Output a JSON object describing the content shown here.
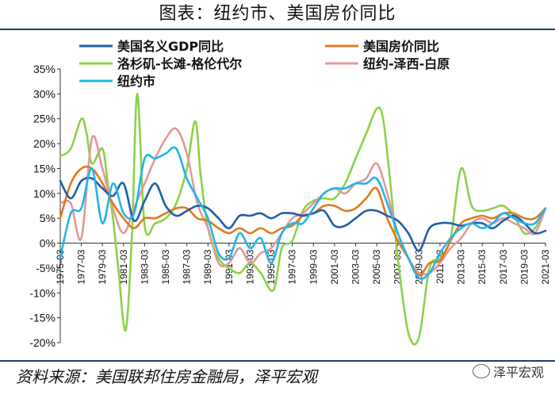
{
  "title": "图表：纽约市、美国房价同比",
  "source": "资料来源：美国联邦住房金融局，泽平宏观",
  "watermark": "泽平宏观",
  "chart_data": {
    "type": "line",
    "title": "图表：纽约市、美国房价同比",
    "xlabel": "",
    "ylabel": "",
    "ylim": [
      -20,
      35
    ],
    "yticks": [
      -20,
      -15,
      -10,
      -5,
      0,
      5,
      10,
      15,
      20,
      25,
      30,
      35
    ],
    "ytick_labels": [
      "-20%",
      "-15%",
      "-10%",
      "-5%",
      "0%",
      "5%",
      "10%",
      "15%",
      "20%",
      "25%",
      "30%",
      "35%"
    ],
    "xlim": [
      1975,
      2021
    ],
    "xticks": [
      1975,
      1977,
      1979,
      1981,
      1983,
      1985,
      1987,
      1989,
      1991,
      1993,
      1995,
      1997,
      1999,
      2001,
      2003,
      2005,
      2007,
      2009,
      2011,
      2013,
      2015,
      2017,
      2019,
      2021
    ],
    "xtick_labels": [
      "1975-03",
      "1977-03",
      "1979-03",
      "1981-03",
      "1983-03",
      "1985-03",
      "1987-03",
      "1989-03",
      "1991-03",
      "1993-03",
      "1995-03",
      "1997-03",
      "1999-03",
      "2001-03",
      "2003-03",
      "2005-03",
      "2007-03",
      "2009-03",
      "2011-03",
      "2013-03",
      "2015-03",
      "2017-03",
      "2019-03",
      "2021-03"
    ],
    "legend_position": "top",
    "series": [
      {
        "name": "美国名义GDP同比",
        "color": "#1f5fa8",
        "x": [
          1975,
          1976,
          1977,
          1978,
          1979,
          1980,
          1981,
          1982,
          1983,
          1984,
          1985,
          1986,
          1987,
          1988,
          1989,
          1990,
          1991,
          1992,
          1993,
          1994,
          1995,
          1996,
          1997,
          1998,
          1999,
          2000,
          2001,
          2002,
          2003,
          2004,
          2005,
          2006,
          2007,
          2008,
          2009,
          2010,
          2011,
          2012,
          2013,
          2014,
          2015,
          2016,
          2017,
          2018,
          2019,
          2020,
          2021
        ],
        "y": [
          12.5,
          9,
          12.5,
          13,
          11,
          9.5,
          12,
          4.5,
          8.5,
          12,
          7.5,
          5.5,
          6.5,
          7.5,
          7,
          5,
          3,
          5.5,
          5.5,
          6,
          5,
          6,
          6,
          5.5,
          6,
          6.5,
          3.5,
          3.5,
          5,
          6.5,
          6.5,
          5.5,
          4.5,
          2,
          -1.5,
          3,
          4,
          4,
          3.5,
          4,
          4,
          3,
          4.5,
          5.5,
          4,
          2,
          2.5
        ]
      },
      {
        "name": "美国房价同比",
        "color": "#e07a1f",
        "x": [
          1975,
          1976,
          1977,
          1978,
          1979,
          1980,
          1981,
          1982,
          1983,
          1984,
          1985,
          1986,
          1987,
          1988,
          1989,
          1990,
          1991,
          1992,
          1993,
          1994,
          1995,
          1996,
          1997,
          1998,
          1999,
          2000,
          2001,
          2002,
          2003,
          2004,
          2005,
          2006,
          2007,
          2008,
          2009,
          2010,
          2011,
          2012,
          2013,
          2014,
          2015,
          2016,
          2017,
          2018,
          2019,
          2020,
          2021
        ],
        "y": [
          5,
          12,
          15,
          15,
          12,
          8,
          5,
          3,
          5,
          5,
          6,
          7,
          7,
          5,
          4.5,
          3,
          2,
          3,
          2,
          3,
          2,
          3,
          3.5,
          5.5,
          6,
          7.5,
          7.5,
          6.5,
          7,
          9,
          11,
          5,
          0.5,
          -3,
          -6.5,
          -4,
          -3.5,
          0.5,
          4,
          5,
          5.5,
          5,
          6,
          6,
          5,
          5,
          7
        ]
      },
      {
        "name": "洛杉矶-长滩-格伦代尔",
        "color": "#8cd14a",
        "x": [
          1975,
          1976,
          1977,
          1977.5,
          1978,
          1979,
          1979.5,
          1980,
          1980.5,
          1981.2,
          1981.8,
          1982.3,
          1983,
          1984,
          1985,
          1986,
          1987,
          1987.8,
          1988.3,
          1989,
          1990,
          1991,
          1992,
          1993,
          1994,
          1995.2,
          1996,
          1997,
          1998,
          1999,
          2000,
          2001,
          2002,
          2003,
          2004,
          2005,
          2005.6,
          2006.3,
          2007,
          2008,
          2009,
          2010,
          2011,
          2012,
          2013,
          2014,
          2015,
          2016,
          2017,
          2018,
          2019,
          2020,
          2021
        ],
        "y": [
          17.5,
          19,
          25,
          22,
          16,
          19,
          12,
          5,
          -5,
          -17.5,
          2,
          30,
          3.5,
          4,
          5,
          8,
          15,
          24.5,
          14,
          3,
          -3,
          -5,
          -6,
          -4,
          -6,
          -9.5,
          -1,
          0.5,
          6.5,
          8.5,
          9,
          9,
          12,
          17,
          22,
          27,
          25,
          12,
          -3,
          -18,
          -19,
          -5,
          -3,
          1,
          15,
          7.5,
          6.5,
          7,
          7.5,
          5.5,
          2,
          3,
          7
        ]
      },
      {
        "name": "纽约-泽西-白原",
        "color": "#e09a9a",
        "x": [
          1975,
          1976,
          1977,
          1978,
          1979,
          1980,
          1981,
          1982,
          1983,
          1984,
          1985,
          1986,
          1987,
          1988,
          1989,
          1990,
          1991,
          1992,
          1993,
          1994,
          1995,
          1996,
          1997,
          1998,
          1999,
          2000,
          2001,
          2002,
          2003,
          2004,
          2005,
          2006,
          2007,
          2008,
          2009,
          2010,
          2011,
          2012,
          2013,
          2014,
          2015,
          2016,
          2017,
          2018,
          2019,
          2020,
          2021
        ],
        "y": [
          8,
          8,
          1,
          21,
          15,
          7,
          2,
          7,
          12,
          17,
          21,
          23,
          18,
          8,
          3,
          -4,
          -4,
          -1,
          -4,
          -2,
          -1,
          2,
          5,
          6,
          8,
          10,
          11,
          10,
          12,
          13,
          16,
          10,
          2,
          -3,
          -6,
          -6,
          -4,
          -1,
          1,
          4,
          5,
          4,
          5,
          4,
          3,
          2,
          7
        ]
      },
      {
        "name": "纽约市",
        "color": "#21b5e8",
        "x": [
          1975,
          1976,
          1977,
          1978,
          1979,
          1980,
          1981,
          1982,
          1983,
          1984,
          1985,
          1986,
          1987,
          1988,
          1989,
          1990,
          1991,
          1992,
          1993,
          1994,
          1995,
          1996,
          1997,
          1998,
          1999,
          2000,
          2001,
          2002,
          2003,
          2004,
          2005,
          2006,
          2007,
          2008,
          2009,
          2010,
          2011,
          2012,
          2013,
          2014,
          2015,
          2016,
          2017,
          2018,
          2019,
          2020,
          2021
        ],
        "y": [
          -3,
          6,
          7,
          15,
          4,
          12,
          6,
          6,
          17,
          17,
          18,
          19,
          13,
          9,
          5,
          -2,
          -3,
          2,
          -1,
          1,
          -4,
          2,
          4,
          4,
          7,
          10,
          11,
          11,
          12,
          12,
          13,
          8,
          2,
          -3,
          -7,
          -6,
          -2,
          1,
          3,
          4,
          3,
          4,
          6,
          5,
          4,
          4,
          7
        ]
      }
    ]
  }
}
